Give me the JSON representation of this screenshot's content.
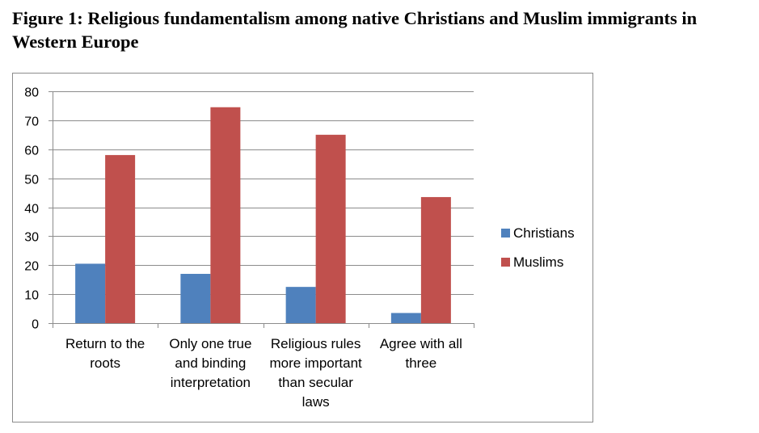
{
  "figure": {
    "title": "Figure 1: Religious fundamentalism among native Christians and Muslim immigrants in Western Europe"
  },
  "chart_data": {
    "type": "bar",
    "title": "",
    "xlabel": "",
    "ylabel": "",
    "categories": [
      [
        "Return to the",
        "roots"
      ],
      [
        "Only one true",
        "and binding",
        "interpretation"
      ],
      [
        "Religious rules",
        "more important",
        "than secular",
        "laws"
      ],
      [
        "Agree with all",
        "three"
      ]
    ],
    "series": [
      {
        "name": "Christians",
        "color": "#4f81bd",
        "values": [
          20.5,
          17,
          12.5,
          3.5
        ]
      },
      {
        "name": "Muslims",
        "color": "#c0504d",
        "values": [
          58,
          74.5,
          65,
          43.5
        ]
      }
    ],
    "ylim": [
      0,
      80
    ],
    "yticks": [
      0,
      10,
      20,
      30,
      40,
      50,
      60,
      70,
      80
    ],
    "grid": true,
    "legend_position": "right"
  }
}
